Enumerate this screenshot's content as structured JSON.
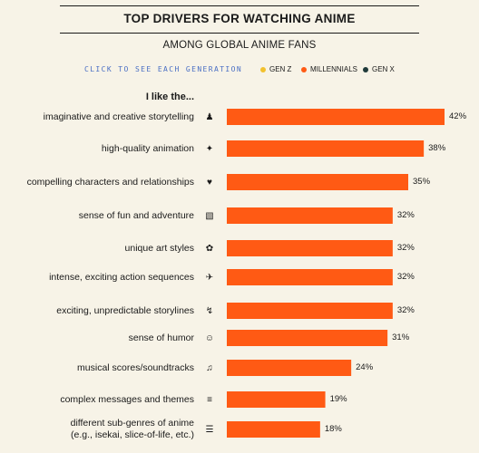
{
  "header": {
    "title": "TOP DRIVERS FOR WATCHING ANIME",
    "subtitle": "AMONG GLOBAL ANIME FANS"
  },
  "legend": {
    "click_text": "CLICK TO SEE EACH GENERATION",
    "items": [
      {
        "label": "GEN Z",
        "color": "#f2c12e"
      },
      {
        "label": "MILLENNIALS",
        "color": "#ff5a14"
      },
      {
        "label": "GEN X",
        "color": "#1f3a3a"
      }
    ]
  },
  "lead_in": "I like the...",
  "chart_data": {
    "type": "bar",
    "orientation": "horizontal",
    "categories": [
      "imaginative and creative storytelling",
      "high-quality animation",
      "compelling characters and relationships",
      "sense of fun and adventure",
      "unique art styles",
      "intense, exciting action sequences",
      "exciting, unpredictable storylines",
      "sense of humor",
      "musical scores/soundtracks",
      "complex messages and themes",
      "different sub-genres of anime\n(e.g., isekai, slice-of-life, etc.)"
    ],
    "values": [
      42,
      38,
      35,
      32,
      32,
      32,
      32,
      31,
      24,
      19,
      18
    ],
    "value_labels": [
      "42%",
      "38%",
      "35%",
      "32%",
      "32%",
      "32%",
      "32%",
      "31%",
      "24%",
      "19%",
      "18%"
    ],
    "icons": [
      "person-icon",
      "animation-icon",
      "characters-icon",
      "adventure-icon",
      "palette-icon",
      "action-icon",
      "storyline-icon",
      "humor-icon",
      "music-icon",
      "scroll-icon",
      "list-icon"
    ],
    "bar_color": "#ff5a14",
    "xlim": [
      0,
      42
    ],
    "grid": false
  }
}
